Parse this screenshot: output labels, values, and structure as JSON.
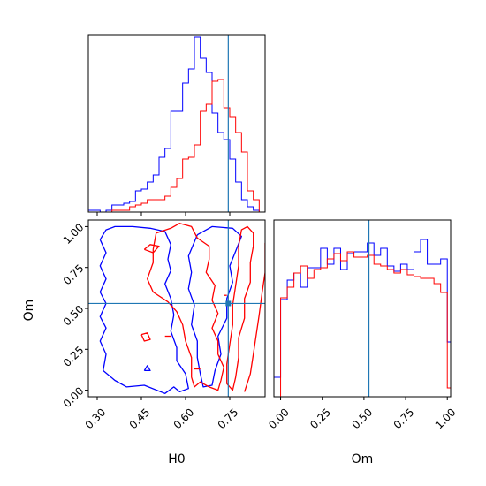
{
  "colors": {
    "blue": "#0000ff",
    "red": "#ff0000",
    "truth": "#1f77b4",
    "frame": "#000000"
  },
  "chart_data": {
    "type": "corner",
    "parameters": [
      "H0",
      "Om"
    ],
    "truth": {
      "H0": 0.745,
      "Om": 0.53
    },
    "panels": [
      {
        "id": "hist-h0",
        "type": "histogram",
        "xlim": [
          0.27,
          0.87
        ],
        "ylim": [
          0,
          1.0
        ],
        "bin_edges": [
          0.27,
          0.29,
          0.31,
          0.33,
          0.35,
          0.37,
          0.39,
          0.41,
          0.43,
          0.45,
          0.47,
          0.49,
          0.51,
          0.53,
          0.55,
          0.57,
          0.59,
          0.61,
          0.63,
          0.65,
          0.67,
          0.69,
          0.71,
          0.73,
          0.75,
          0.77,
          0.79,
          0.81,
          0.83,
          0.85,
          0.87
        ],
        "series": [
          {
            "name": "blue",
            "color": "blue",
            "counts": [
              0.01,
              0.01,
              0,
              0.01,
              0.04,
              0.04,
              0.05,
              0.06,
              0.12,
              0.13,
              0.17,
              0.21,
              0.31,
              0.36,
              0.57,
              0.57,
              0.73,
              0.81,
              0.99,
              0.87,
              0.79,
              0.56,
              0.45,
              0.41,
              0.3,
              0.17,
              0.07,
              0.03,
              0.01,
              0
            ]
          },
          {
            "name": "red",
            "color": "red",
            "counts": [
              0,
              0,
              0,
              0,
              0.01,
              0.01,
              0.01,
              0.03,
              0.04,
              0.05,
              0.07,
              0.07,
              0.07,
              0.09,
              0.14,
              0.19,
              0.3,
              0.31,
              0.38,
              0.57,
              0.61,
              0.74,
              0.75,
              0.59,
              0.54,
              0.45,
              0.34,
              0.12,
              0.07,
              0
            ]
          }
        ]
      },
      {
        "id": "hist-om",
        "type": "histogram",
        "xlim": [
          -0.04,
          1.02
        ],
        "ylim": [
          0,
          1.0
        ],
        "bin_edges": [
          -0.04,
          0.0,
          0.04,
          0.08,
          0.12,
          0.16,
          0.2,
          0.24,
          0.28,
          0.32,
          0.36,
          0.4,
          0.44,
          0.48,
          0.52,
          0.56,
          0.6,
          0.64,
          0.68,
          0.72,
          0.76,
          0.8,
          0.84,
          0.88,
          0.92,
          0.96,
          1.0,
          1.02
        ],
        "series": [
          {
            "name": "blue",
            "color": "blue",
            "counts": [
              0.11,
              0.55,
              0.66,
              0.7,
              0.62,
              0.73,
              0.73,
              0.84,
              0.75,
              0.84,
              0.72,
              0.81,
              0.82,
              0.82,
              0.87,
              0.8,
              0.84,
              0.74,
              0.71,
              0.75,
              0.72,
              0.82,
              0.89,
              0.75,
              0.75,
              0.78,
              0.31
            ]
          },
          {
            "name": "red",
            "color": "red",
            "counts": [
              0,
              0.56,
              0.62,
              0.7,
              0.74,
              0.67,
              0.72,
              0.73,
              0.78,
              0.81,
              0.77,
              0.82,
              0.79,
              0.79,
              0.8,
              0.75,
              0.74,
              0.72,
              0.7,
              0.72,
              0.69,
              0.68,
              0.67,
              0.67,
              0.64,
              0.59,
              0.05
            ]
          }
        ]
      },
      {
        "id": "contour-h0-om",
        "type": "contour",
        "xlim": [
          0.27,
          0.87
        ],
        "ylim": [
          -0.04,
          1.04
        ],
        "series": [
          {
            "name": "blue-outer",
            "color": "blue",
            "points": [
              [
                0.31,
                0.92
              ],
              [
                0.33,
                0.98
              ],
              [
                0.36,
                1.0
              ],
              [
                0.42,
                1.0
              ],
              [
                0.48,
                0.99
              ],
              [
                0.53,
                0.97
              ],
              [
                0.55,
                0.89
              ],
              [
                0.54,
                0.8
              ],
              [
                0.55,
                0.73
              ],
              [
                0.53,
                0.65
              ],
              [
                0.55,
                0.56
              ],
              [
                0.56,
                0.46
              ],
              [
                0.55,
                0.36
              ],
              [
                0.57,
                0.26
              ],
              [
                0.57,
                0.18
              ],
              [
                0.6,
                0.1
              ],
              [
                0.61,
                0.01
              ],
              [
                0.58,
                -0.01
              ],
              [
                0.56,
                0.02
              ],
              [
                0.53,
                -0.02
              ],
              [
                0.46,
                0.03
              ],
              [
                0.4,
                0.02
              ],
              [
                0.36,
                0.06
              ],
              [
                0.32,
                0.12
              ],
              [
                0.33,
                0.22
              ],
              [
                0.31,
                0.3
              ],
              [
                0.33,
                0.38
              ],
              [
                0.31,
                0.45
              ],
              [
                0.33,
                0.53
              ],
              [
                0.31,
                0.6
              ],
              [
                0.33,
                0.68
              ],
              [
                0.31,
                0.76
              ],
              [
                0.33,
                0.84
              ],
              [
                0.31,
                0.92
              ]
            ]
          },
          {
            "name": "blue-inner",
            "color": "blue",
            "points": [
              [
                0.64,
                0.95
              ],
              [
                0.69,
                1.0
              ],
              [
                0.76,
                0.99
              ],
              [
                0.79,
                0.94
              ],
              [
                0.77,
                0.85
              ],
              [
                0.75,
                0.76
              ],
              [
                0.76,
                0.66
              ],
              [
                0.74,
                0.56
              ],
              [
                0.74,
                0.44
              ],
              [
                0.71,
                0.33
              ],
              [
                0.72,
                0.22
              ],
              [
                0.7,
                0.12
              ],
              [
                0.69,
                0.03
              ],
              [
                0.66,
                0.02
              ],
              [
                0.65,
                0.1
              ],
              [
                0.64,
                0.2
              ],
              [
                0.64,
                0.3
              ],
              [
                0.62,
                0.4
              ],
              [
                0.63,
                0.52
              ],
              [
                0.61,
                0.62
              ],
              [
                0.62,
                0.72
              ],
              [
                0.61,
                0.82
              ],
              [
                0.64,
                0.95
              ]
            ]
          },
          {
            "name": "red-outer",
            "color": "red",
            "points": [
              [
                0.49,
                0.86
              ],
              [
                0.5,
                0.96
              ],
              [
                0.55,
                0.99
              ],
              [
                0.58,
                1.02
              ],
              [
                0.62,
                1.0
              ],
              [
                0.64,
                0.93
              ],
              [
                0.68,
                0.88
              ],
              [
                0.68,
                0.8
              ],
              [
                0.67,
                0.72
              ],
              [
                0.7,
                0.64
              ],
              [
                0.69,
                0.55
              ],
              [
                0.71,
                0.47
              ],
              [
                0.69,
                0.38
              ],
              [
                0.71,
                0.3
              ],
              [
                0.71,
                0.22
              ],
              [
                0.73,
                0.14
              ],
              [
                0.72,
                0.06
              ],
              [
                0.71,
                0.0
              ],
              [
                0.68,
                0.02
              ],
              [
                0.65,
                0.05
              ],
              [
                0.63,
                0.02
              ],
              [
                0.62,
                0.08
              ],
              [
                0.62,
                0.2
              ],
              [
                0.6,
                0.3
              ],
              [
                0.59,
                0.4
              ],
              [
                0.57,
                0.48
              ],
              [
                0.54,
                0.54
              ],
              [
                0.49,
                0.6
              ],
              [
                0.47,
                0.68
              ],
              [
                0.49,
                0.78
              ],
              [
                0.49,
                0.86
              ]
            ]
          },
          {
            "name": "red-inner",
            "color": "red",
            "points": [
              [
                0.78,
                0.88
              ],
              [
                0.79,
                0.98
              ],
              [
                0.81,
                1.0
              ],
              [
                0.83,
                0.96
              ],
              [
                0.83,
                0.88
              ],
              [
                0.82,
                0.78
              ],
              [
                0.82,
                0.66
              ],
              [
                0.8,
                0.56
              ],
              [
                0.8,
                0.44
              ],
              [
                0.78,
                0.32
              ],
              [
                0.78,
                0.2
              ],
              [
                0.77,
                0.08
              ],
              [
                0.76,
                0.0
              ],
              [
                0.74,
                0.04
              ],
              [
                0.74,
                0.16
              ],
              [
                0.75,
                0.28
              ],
              [
                0.76,
                0.4
              ],
              [
                0.76,
                0.52
              ],
              [
                0.77,
                0.64
              ],
              [
                0.78,
                0.76
              ],
              [
                0.78,
                0.88
              ]
            ]
          },
          {
            "name": "red-edge",
            "color": "red",
            "points": [
              [
                0.8,
                -0.01
              ],
              [
                0.82,
                0.1
              ],
              [
                0.83,
                0.22
              ],
              [
                0.84,
                0.34
              ],
              [
                0.85,
                0.46
              ],
              [
                0.86,
                0.6
              ],
              [
                0.87,
                0.72
              ],
              [
                0.87,
                0.84
              ],
              [
                0.87,
                0.9
              ]
            ]
          },
          {
            "name": "red-island-1",
            "color": "red",
            "points": [
              [
                0.46,
                0.86
              ],
              [
                0.48,
                0.89
              ],
              [
                0.51,
                0.88
              ],
              [
                0.49,
                0.84
              ],
              [
                0.46,
                0.86
              ]
            ]
          },
          {
            "name": "red-island-2",
            "color": "red",
            "points": [
              [
                0.45,
                0.34
              ],
              [
                0.46,
                0.3
              ],
              [
                0.48,
                0.31
              ],
              [
                0.47,
                0.35
              ],
              [
                0.45,
                0.34
              ]
            ]
          },
          {
            "name": "red-dash-1",
            "color": "red",
            "points": [
              [
                0.53,
                0.33
              ],
              [
                0.55,
                0.33
              ]
            ]
          },
          {
            "name": "red-dash-2",
            "color": "red",
            "points": [
              [
                0.63,
                0.13
              ],
              [
                0.65,
                0.13
              ]
            ]
          },
          {
            "name": "red-dash-3",
            "color": "red",
            "points": [
              [
                0.73,
                0.58
              ],
              [
                0.74,
                0.58
              ]
            ]
          },
          {
            "name": "blue-island",
            "color": "blue",
            "points": [
              [
                0.46,
                0.12
              ],
              [
                0.47,
                0.15
              ],
              [
                0.48,
                0.12
              ],
              [
                0.46,
                0.12
              ]
            ]
          }
        ]
      }
    ],
    "axes": {
      "x_h0": {
        "ticks": [
          0.3,
          0.45,
          0.6,
          0.75
        ],
        "tick_labels": [
          "0.30",
          "0.45",
          "0.60",
          "0.75"
        ],
        "label": "H0"
      },
      "y_om": {
        "ticks": [
          0.0,
          0.25,
          0.5,
          0.75,
          1.0
        ],
        "tick_labels": [
          "0.00",
          "0.25",
          "0.50",
          "0.75",
          "1.00"
        ],
        "label": "Om"
      },
      "x_om": {
        "ticks": [
          0.0,
          0.25,
          0.5,
          0.75,
          1.0
        ],
        "tick_labels": [
          "0.00",
          "0.25",
          "0.50",
          "0.75",
          "1.00"
        ],
        "label": "Om"
      }
    }
  }
}
